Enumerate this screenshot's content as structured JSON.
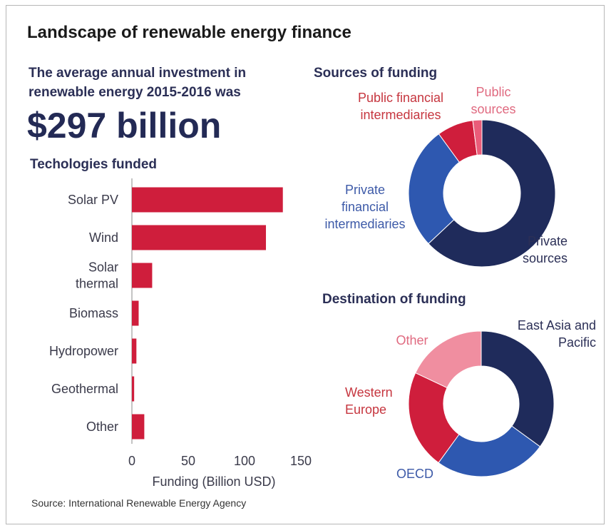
{
  "title": "Landscape of renewable energy finance",
  "intro": {
    "line1": "The average annual investment in",
    "line2": "renewable energy 2015-2016 was",
    "amount": "$297 billion"
  },
  "source": "Source: International Renewable Energy Agency",
  "colors": {
    "bar": "#cf1e3c",
    "dark_navy": "#1f2b5b",
    "blue": "#2e58b0",
    "red": "#cf1e3c",
    "pink": "#ea5c79",
    "light_pink": "#f08ea0",
    "label_blue": "#3d5aa8",
    "label_red": "#c6363f",
    "label_dark": "#2b2f56",
    "label_pink": "#e06a80"
  },
  "chart_data": [
    {
      "type": "bar",
      "orientation": "horizontal",
      "title": "Techologies funded",
      "categories": [
        [
          "Solar PV"
        ],
        [
          "Wind"
        ],
        [
          "Solar",
          "thermal"
        ],
        [
          "Biomass"
        ],
        [
          "Hydropower"
        ],
        [
          "Geothermal"
        ],
        [
          "Other"
        ]
      ],
      "values": [
        134,
        119,
        18,
        6,
        4,
        2,
        11
      ],
      "xlabel": "Funding (Billion USD)",
      "xlim": [
        0,
        150
      ],
      "xticks": [
        "0",
        "50",
        "100",
        "150"
      ],
      "grid": false
    },
    {
      "type": "pie",
      "donut": true,
      "title": "Sources of funding",
      "slices": [
        {
          "label": [
            "Private",
            "sources"
          ],
          "value": 63,
          "color": "#1f2b5b",
          "label_color": "#2b2f56"
        },
        {
          "label": [
            "Private",
            "financial",
            "intermediaries"
          ],
          "value": 27,
          "color": "#2e58b0",
          "label_color": "#3d5aa8"
        },
        {
          "label": [
            "Public financial",
            "intermediaries"
          ],
          "value": 8,
          "color": "#cf1e3c",
          "label_color": "#c6363f"
        },
        {
          "label": [
            "Public",
            "sources"
          ],
          "value": 2,
          "color": "#ea5c79",
          "label_color": "#e06a80"
        }
      ]
    },
    {
      "type": "pie",
      "donut": true,
      "title": "Destination of funding",
      "slices": [
        {
          "label": [
            "East Asia and",
            "Pacific"
          ],
          "value": 35,
          "color": "#1f2b5b",
          "label_color": "#2b2f56"
        },
        {
          "label": [
            "OECD"
          ],
          "value": 25,
          "color": "#2e58b0",
          "label_color": "#3d5aa8"
        },
        {
          "label": [
            "Western",
            "Europe"
          ],
          "value": 22,
          "color": "#cf1e3c",
          "label_color": "#c6363f"
        },
        {
          "label": [
            "Other"
          ],
          "value": 18,
          "color": "#f08ea0",
          "label_color": "#e06a80"
        }
      ]
    }
  ]
}
